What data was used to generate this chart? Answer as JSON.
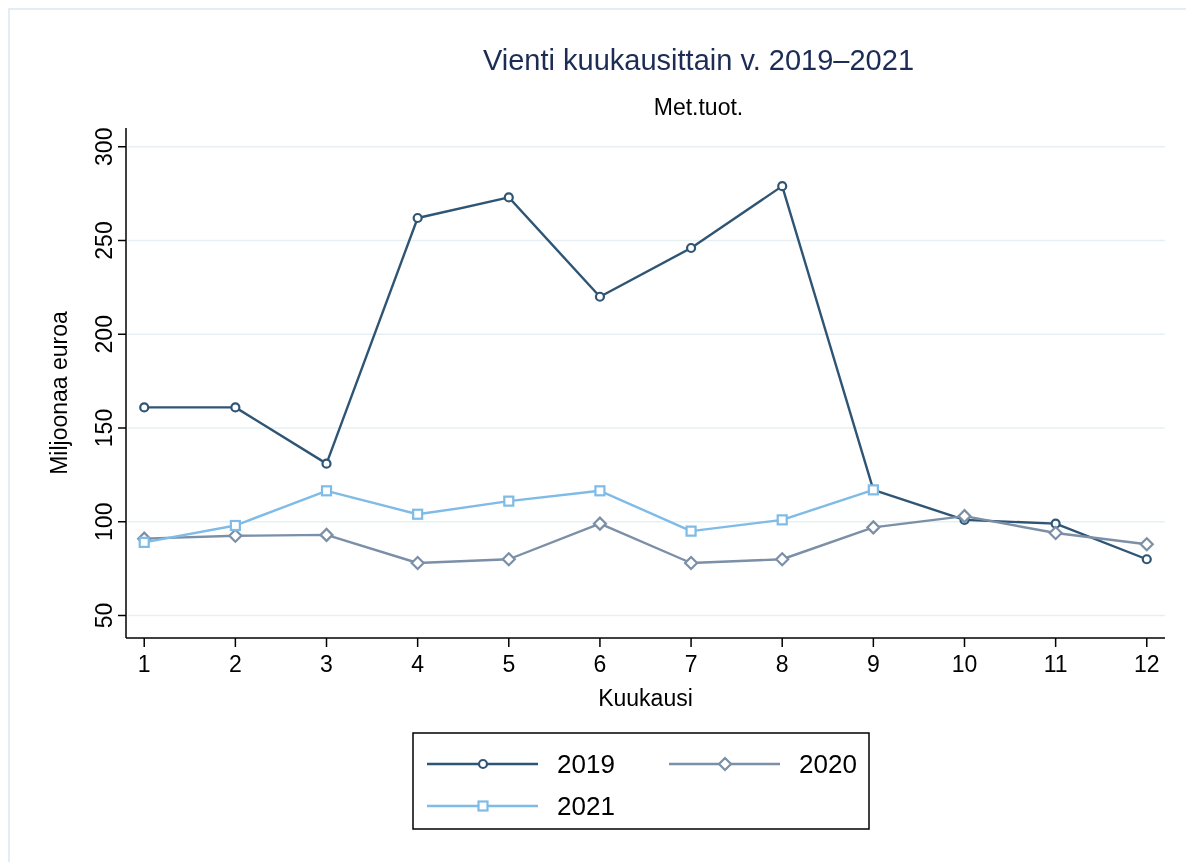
{
  "chart_data": {
    "type": "line",
    "title": "Vienti kuukausittain v. 2019–2021",
    "subtitle": "Met.tuot.",
    "xlabel": "Kuukausi",
    "ylabel": "Miljoonaa euroa",
    "x": [
      1,
      2,
      3,
      4,
      5,
      6,
      7,
      8,
      9,
      10,
      11,
      12
    ],
    "series": [
      {
        "name": "2019",
        "color": "#2f5575",
        "marker": "circle",
        "values": [
          161,
          161,
          131,
          262,
          273,
          220,
          246,
          279,
          117,
          101,
          99,
          80
        ]
      },
      {
        "name": "2020",
        "color": "#7b8fa7",
        "marker": "diamond",
        "values": [
          91,
          92.5,
          93,
          78,
          80,
          99,
          78,
          80,
          97,
          103,
          94,
          88
        ]
      },
      {
        "name": "2021",
        "color": "#7ebbe6",
        "marker": "square",
        "values": [
          89,
          98,
          116.5,
          104,
          111,
          116.5,
          95,
          101,
          117,
          null,
          null,
          null
        ]
      }
    ],
    "xlim": [
      0.8,
      12.2
    ],
    "xticks": [
      1,
      2,
      3,
      4,
      5,
      6,
      7,
      8,
      9,
      10,
      11,
      12
    ],
    "ylim": [
      38,
      310
    ],
    "yticks": [
      50,
      100,
      150,
      200,
      250,
      300
    ],
    "grid": "y",
    "legend": "bottom",
    "line_style": "solid"
  }
}
